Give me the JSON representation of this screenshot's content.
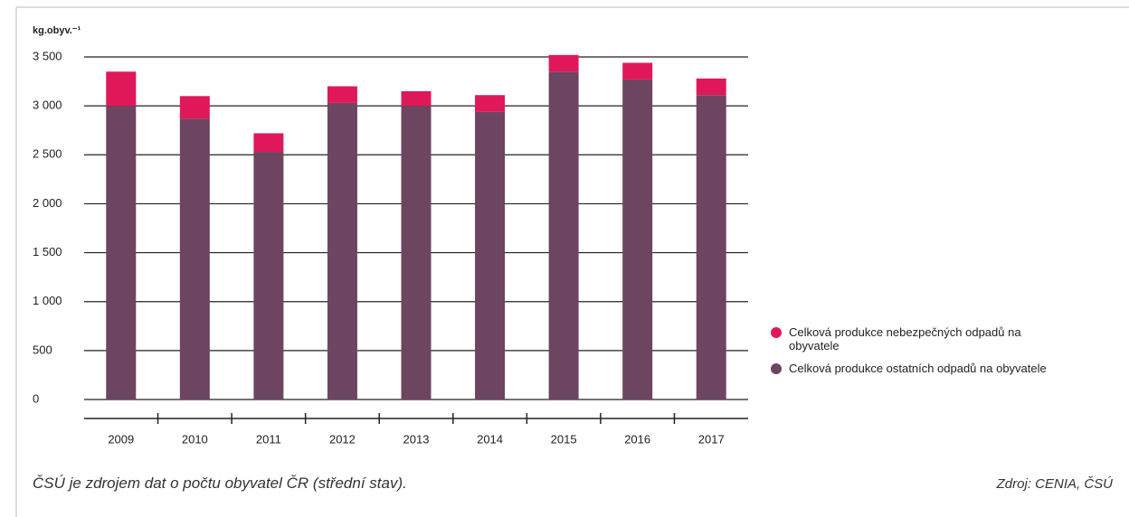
{
  "chart_data": {
    "type": "stacked-bar",
    "y_label": "kg.obyv.⁻¹",
    "categories": [
      "2009",
      "2010",
      "2011",
      "2012",
      "2013",
      "2014",
      "2015",
      "2016",
      "2017"
    ],
    "series": [
      {
        "name": "Celková produkce nebezpečných odpadů na obyvatele",
        "color": "#e0185a",
        "values": [
          350,
          230,
          190,
          170,
          150,
          170,
          170,
          170,
          170
        ]
      },
      {
        "name": "Celková produkce ostatních odpadů na obyvatele",
        "color": "#6d4560",
        "values": [
          3000,
          2870,
          2530,
          3030,
          3000,
          2940,
          3350,
          3270,
          3110
        ]
      }
    ],
    "ylim": [
      0,
      3500
    ],
    "yticks": [
      0,
      500,
      {
        "value": 1000,
        "label": "1 000"
      },
      {
        "value": 1500,
        "label": "1 500"
      },
      {
        "value": 2000,
        "label": "2 000"
      },
      {
        "value": 2500,
        "label": "2 500"
      },
      {
        "value": 3000,
        "label": "3 000"
      },
      {
        "value": 3500,
        "label": "3 500"
      }
    ],
    "grid": true,
    "legend_position": "right",
    "note": "ČSÚ je zdrojem dat o počtu obyvatel ČR (střední stav).",
    "source": "Zdroj: CENIA, ČSÚ"
  }
}
